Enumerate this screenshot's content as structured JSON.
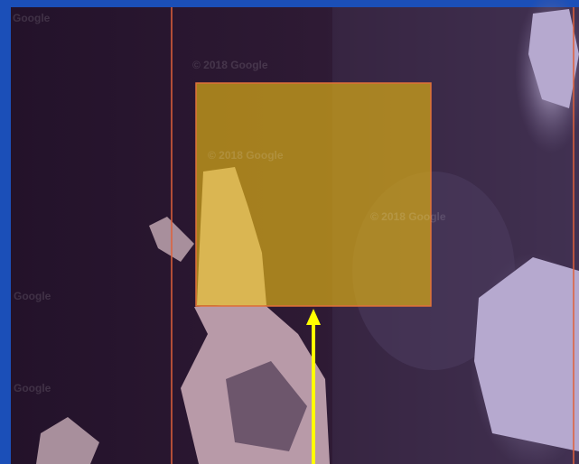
{
  "watermarks": [
    "Google",
    "© 2018 Google",
    "© 2018 Google",
    "© 2018 Google",
    "Google",
    "Google"
  ]
}
